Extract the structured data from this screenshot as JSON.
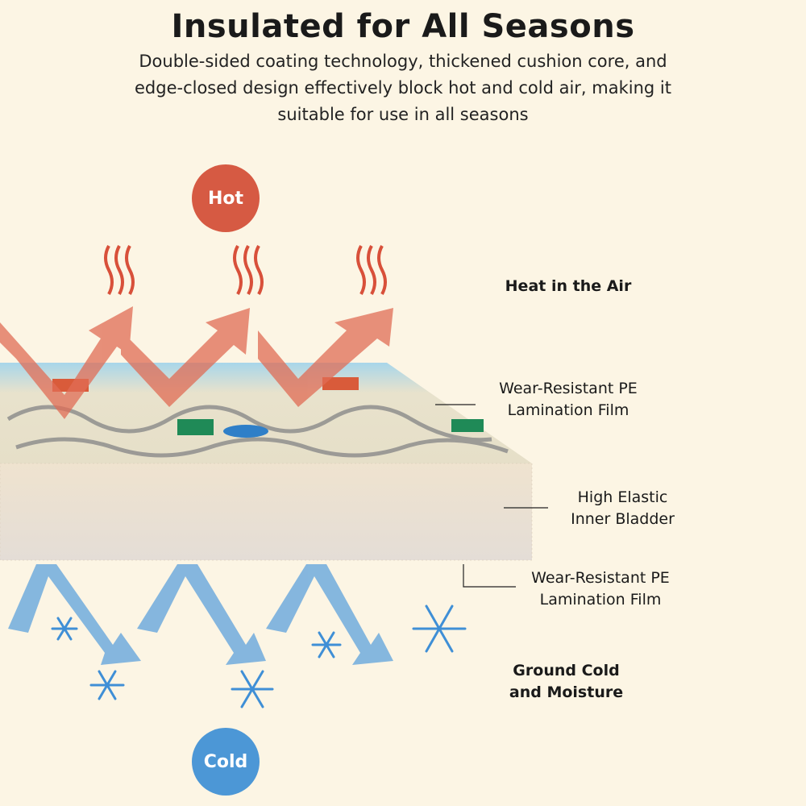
{
  "title": "Insulated for All Seasons",
  "subtitle": "Double-sided coating technology, thickened cushion core, and edge-closed design effectively block hot and cold air, making it suitable for use in all seasons",
  "badges": {
    "hot": "Hot",
    "cold": "Cold"
  },
  "labels": {
    "heat": "Heat in the Air",
    "top_film": "Wear-Resistant PE Lamination Film",
    "core": "High Elastic Inner Bladder",
    "bottom_film": "Wear-Resistant PE Lamination Film",
    "ground": "Ground Cold and Moisture"
  },
  "colors": {
    "background": "#fcf5e4",
    "hot": "#d65a43",
    "cold": "#4c97d6"
  },
  "icons": [
    "heat-wave-icon",
    "snowflake-icon",
    "arrow-up-icon",
    "arrow-down-icon"
  ]
}
